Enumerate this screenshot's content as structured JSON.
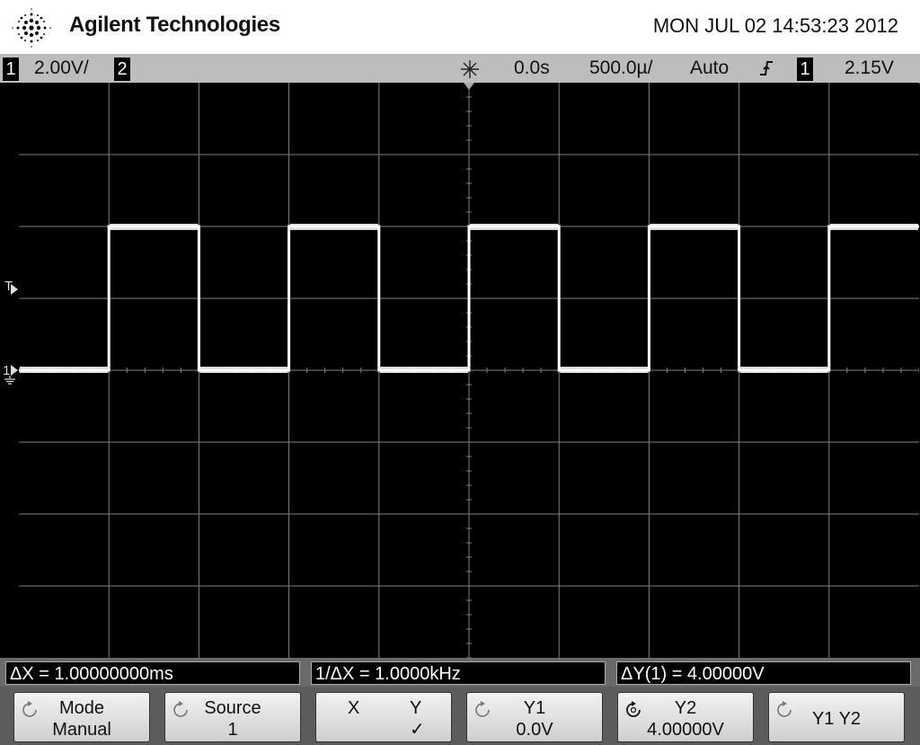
{
  "header": {
    "brand": "Agilent Technologies",
    "datetime": "MON JUL 02 14:53:23 2012"
  },
  "status": {
    "ch1_num": "1",
    "ch1_scale": "2.00V/",
    "ch2_num": "2",
    "trigger_delay": "0.0s",
    "timebase": "500.0µ/",
    "trigger_mode": "Auto",
    "trigger_source_num": "1",
    "trigger_level": "2.15V"
  },
  "markers": {
    "trigger_level": "T",
    "ch1_ground": "1"
  },
  "measurements": {
    "delta_x": "ΔX = 1.00000000ms",
    "inv_delta_x": "1/ΔX = 1.0000kHz",
    "delta_y": "ΔY(1) = 4.00000V"
  },
  "softkeys": {
    "mode_title": "Mode",
    "mode_value": "Manual",
    "source_title": "Source",
    "source_value": "1",
    "x_label": "X",
    "y_label": "Y",
    "y_selected": "✓",
    "y1_title": "Y1",
    "y1_value": "0.0V",
    "y2_title": "Y2",
    "y2_value": "4.00000V",
    "y1y2_label": "Y1 Y2"
  },
  "colors": {
    "screen_bg": "#000000",
    "trace": "#ffffff",
    "grid": "#808080",
    "status_bar": "#bdbdbd"
  },
  "icons": {
    "logo": "agilent-spark-icon",
    "trigger": "trigger-star-icon",
    "edge": "rising-edge-icon",
    "knob": "rotary-knob-icon"
  },
  "chart_data": {
    "type": "line",
    "title": "",
    "xlabel": "",
    "ylabel": "",
    "x_unit": "ms",
    "y_unit": "V",
    "xlim": [
      -2.5,
      2.5
    ],
    "ylim": [
      -8,
      8
    ],
    "grid": true,
    "series": [
      {
        "name": "",
        "period_ms": 1.0,
        "high_v": 4.0,
        "low_v": 0.0,
        "x": [
          -2.5,
          -2.0,
          -2.0,
          -1.5,
          -1.5,
          -1.0,
          -1.0,
          -0.5,
          -0.5,
          0.0,
          0.0,
          0.5,
          0.5,
          1.0,
          1.0,
          1.5,
          1.5,
          2.0,
          2.0,
          2.5
        ],
        "values": [
          0.0,
          0.0,
          4.0,
          4.0,
          0.0,
          0.0,
          4.0,
          4.0,
          0.0,
          0.0,
          4.0,
          4.0,
          0.0,
          0.0,
          4.0,
          4.0,
          0.0,
          0.0,
          4.0,
          4.0
        ]
      }
    ]
  }
}
